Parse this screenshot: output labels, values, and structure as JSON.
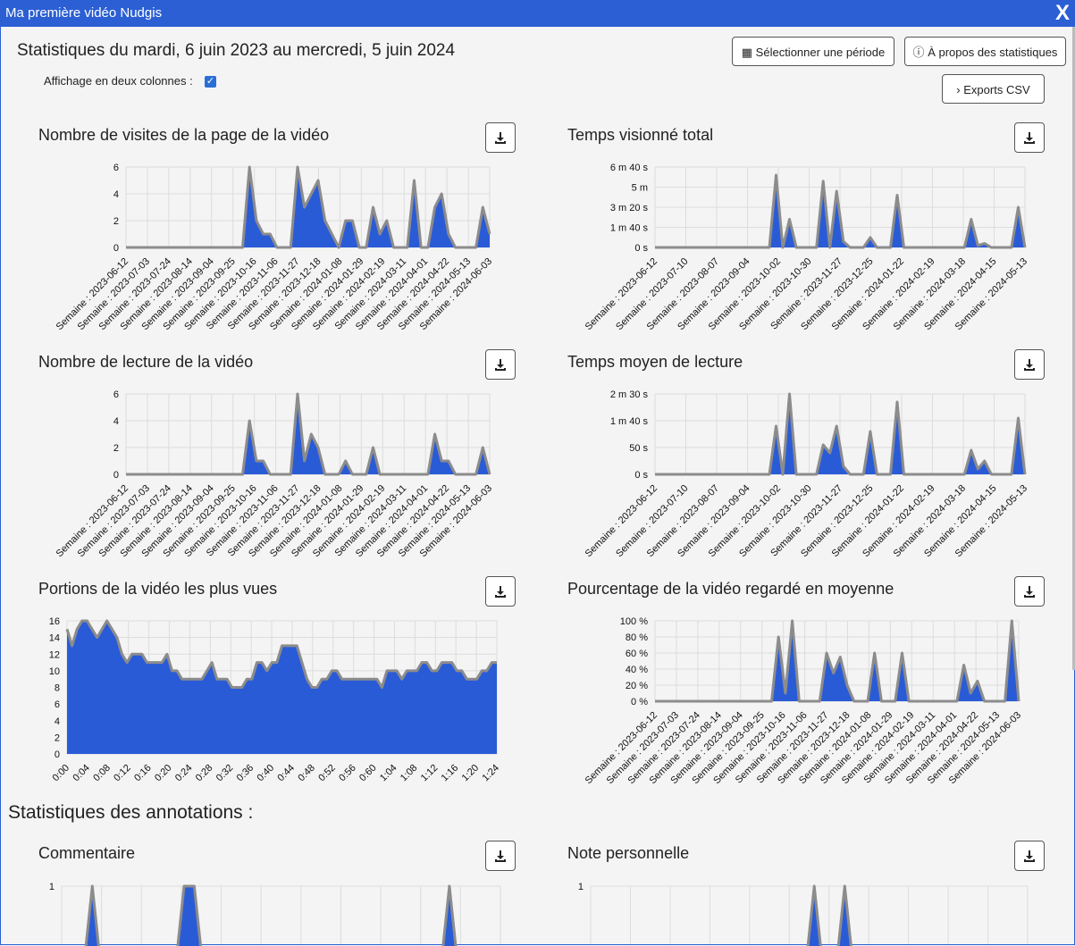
{
  "window": {
    "title": "Ma première vidéo Nudgis",
    "close_label": "X"
  },
  "header": {
    "title": "Statistiques du mardi, 6 juin 2023 au mercredi, 5 juin 2024",
    "two_columns_label": "Affichage en deux colonnes :",
    "two_columns_checked": true,
    "select_period_label": "Sélectionner une période",
    "about_label": "À propos des statistiques",
    "csv_label": "Exports CSV"
  },
  "annotations_title": "Statistiques des annotations :",
  "accent_color": "#2a5bd7",
  "chart_data": [
    {
      "type": "area",
      "title": "Nombre de visites de la page de la vidéo",
      "ylim": [
        0,
        6
      ],
      "yticks": [
        "0",
        "2",
        "4",
        "6"
      ],
      "xticks": [
        "Semaine : 2023-06-12",
        "Semaine : 2023-07-03",
        "Semaine : 2023-07-24",
        "Semaine : 2023-08-14",
        "Semaine : 2023-09-04",
        "Semaine : 2023-09-25",
        "Semaine : 2023-10-16",
        "Semaine : 2023-11-06",
        "Semaine : 2023-11-27",
        "Semaine : 2023-12-18",
        "Semaine : 2024-01-08",
        "Semaine : 2024-01-29",
        "Semaine : 2024-02-19",
        "Semaine : 2024-03-11",
        "Semaine : 2024-04-01",
        "Semaine : 2024-04-22",
        "Semaine : 2024-05-13",
        "Semaine : 2024-06-03"
      ],
      "values": [
        0,
        0,
        0,
        0,
        0,
        0,
        0,
        0,
        0,
        0,
        0,
        0,
        0,
        0,
        0,
        0,
        0,
        0,
        6,
        2,
        1,
        1,
        0,
        0,
        0,
        6,
        3,
        4,
        5,
        2,
        1,
        0,
        2,
        2,
        0,
        0,
        3,
        1,
        2,
        0,
        0,
        0,
        5,
        0,
        0,
        3,
        4,
        1,
        0,
        0,
        0,
        0,
        3,
        1
      ]
    },
    {
      "type": "area",
      "title": "Temps visionné total",
      "ylim": [
        0,
        400
      ],
      "yticks": [
        "0 s",
        "1 m 40 s",
        "3 m 20 s",
        "5 m",
        "6 m 40 s"
      ],
      "xticks": [
        "Semaine : 2023-06-12",
        "Semaine : 2023-07-10",
        "Semaine : 2023-08-07",
        "Semaine : 2023-09-04",
        "Semaine : 2023-10-02",
        "Semaine : 2023-10-30",
        "Semaine : 2023-11-27",
        "Semaine : 2023-12-25",
        "Semaine : 2024-01-22",
        "Semaine : 2024-02-19",
        "Semaine : 2024-03-18",
        "Semaine : 2024-04-15",
        "Semaine : 2024-05-13"
      ],
      "values": [
        0,
        0,
        0,
        0,
        0,
        0,
        0,
        0,
        0,
        0,
        0,
        0,
        0,
        0,
        0,
        0,
        0,
        0,
        360,
        0,
        140,
        0,
        0,
        0,
        0,
        330,
        0,
        280,
        30,
        0,
        0,
        0,
        50,
        0,
        0,
        0,
        260,
        0,
        0,
        0,
        0,
        0,
        0,
        0,
        0,
        0,
        0,
        140,
        10,
        20,
        0,
        0,
        0,
        0,
        200,
        0
      ]
    },
    {
      "type": "area",
      "title": "Nombre de lecture de la vidéo",
      "ylim": [
        0,
        6
      ],
      "yticks": [
        "0",
        "2",
        "4",
        "6"
      ],
      "xticks": [
        "Semaine : 2023-06-12",
        "Semaine : 2023-07-03",
        "Semaine : 2023-07-24",
        "Semaine : 2023-08-14",
        "Semaine : 2023-09-04",
        "Semaine : 2023-09-25",
        "Semaine : 2023-10-16",
        "Semaine : 2023-11-06",
        "Semaine : 2023-11-27",
        "Semaine : 2023-12-18",
        "Semaine : 2024-01-08",
        "Semaine : 2024-01-29",
        "Semaine : 2024-02-19",
        "Semaine : 2024-03-11",
        "Semaine : 2024-04-01",
        "Semaine : 2024-04-22",
        "Semaine : 2024-05-13",
        "Semaine : 2024-06-03"
      ],
      "values": [
        0,
        0,
        0,
        0,
        0,
        0,
        0,
        0,
        0,
        0,
        0,
        0,
        0,
        0,
        0,
        0,
        0,
        0,
        4,
        1,
        1,
        0,
        0,
        0,
        0,
        6,
        1,
        3,
        2,
        0,
        0,
        0,
        1,
        0,
        0,
        0,
        2,
        0,
        0,
        0,
        0,
        0,
        0,
        0,
        0,
        3,
        1,
        1,
        0,
        0,
        0,
        0,
        2,
        0
      ]
    },
    {
      "type": "area",
      "title": "Temps moyen de lecture",
      "ylim": [
        0,
        150
      ],
      "yticks": [
        "0 s",
        "50 s",
        "1 m 40 s",
        "2 m 30 s"
      ],
      "xticks": [
        "Semaine : 2023-06-12",
        "Semaine : 2023-07-10",
        "Semaine : 2023-08-07",
        "Semaine : 2023-09-04",
        "Semaine : 2023-10-02",
        "Semaine : 2023-10-30",
        "Semaine : 2023-11-27",
        "Semaine : 2023-12-25",
        "Semaine : 2024-01-22",
        "Semaine : 2024-02-19",
        "Semaine : 2024-03-18",
        "Semaine : 2024-04-15",
        "Semaine : 2024-05-13"
      ],
      "values": [
        0,
        0,
        0,
        0,
        0,
        0,
        0,
        0,
        0,
        0,
        0,
        0,
        0,
        0,
        0,
        0,
        0,
        0,
        90,
        0,
        150,
        0,
        0,
        0,
        0,
        55,
        40,
        90,
        15,
        0,
        0,
        0,
        80,
        0,
        0,
        0,
        135,
        0,
        0,
        0,
        0,
        0,
        0,
        0,
        0,
        0,
        0,
        45,
        10,
        25,
        0,
        0,
        0,
        0,
        105,
        0
      ]
    },
    {
      "type": "area",
      "title": "Portions de la vidéo les plus vues",
      "ylim": [
        0,
        16
      ],
      "yticks": [
        "0",
        "2",
        "4",
        "6",
        "8",
        "10",
        "12",
        "14",
        "16"
      ],
      "xticks": [
        "0:00",
        "0:04",
        "0:08",
        "0:12",
        "0:16",
        "0:20",
        "0:24",
        "0:28",
        "0:32",
        "0:36",
        "0:40",
        "0:44",
        "0:48",
        "0:52",
        "0:56",
        "0:60",
        "1:04",
        "1:08",
        "1:12",
        "1:16",
        "1:20",
        "1:24"
      ],
      "values": [
        15,
        13,
        15,
        16,
        16,
        15,
        14,
        15,
        16,
        15,
        14,
        12,
        11,
        12,
        12,
        12,
        11,
        11,
        11,
        11,
        12,
        10,
        10,
        9,
        9,
        9,
        9,
        9,
        10,
        11,
        9,
        9,
        9,
        8,
        8,
        8,
        9,
        9,
        11,
        11,
        10,
        11,
        11,
        13,
        13,
        13,
        13,
        11,
        9,
        8,
        8,
        9,
        9,
        10,
        10,
        9,
        9,
        9,
        9,
        9,
        9,
        9,
        9,
        8,
        10,
        10,
        10,
        9,
        10,
        10,
        10,
        11,
        11,
        10,
        10,
        11,
        11,
        11,
        10,
        10,
        9,
        9,
        9,
        10,
        10,
        11,
        11
      ]
    },
    {
      "type": "area",
      "title": "Pourcentage de la vidéo regardé en moyenne",
      "ylim": [
        0,
        100
      ],
      "yticks": [
        "0 %",
        "20 %",
        "40 %",
        "60 %",
        "80 %",
        "100 %"
      ],
      "xticks": [
        "Semaine : 2023-06-12",
        "Semaine : 2023-07-03",
        "Semaine : 2023-07-24",
        "Semaine : 2023-08-14",
        "Semaine : 2023-09-04",
        "Semaine : 2023-09-25",
        "Semaine : 2023-10-16",
        "Semaine : 2023-11-06",
        "Semaine : 2023-11-27",
        "Semaine : 2023-12-18",
        "Semaine : 2024-01-08",
        "Semaine : 2024-01-29",
        "Semaine : 2024-02-19",
        "Semaine : 2024-03-11",
        "Semaine : 2024-04-01",
        "Semaine : 2024-04-22",
        "Semaine : 2024-05-13",
        "Semaine : 2024-06-03"
      ],
      "values": [
        0,
        0,
        0,
        0,
        0,
        0,
        0,
        0,
        0,
        0,
        0,
        0,
        0,
        0,
        0,
        0,
        0,
        0,
        80,
        10,
        100,
        0,
        0,
        0,
        0,
        60,
        35,
        55,
        20,
        0,
        0,
        0,
        60,
        0,
        0,
        0,
        60,
        0,
        0,
        0,
        0,
        0,
        0,
        0,
        0,
        45,
        10,
        25,
        0,
        0,
        0,
        0,
        100,
        0
      ]
    },
    {
      "type": "area",
      "title": "Commentaire",
      "ylim": [
        0,
        1
      ],
      "yticks": [
        "1"
      ],
      "xticks": [],
      "values": [
        0,
        0,
        0,
        1,
        0,
        0,
        0,
        0,
        0,
        0,
        0,
        0,
        1,
        1,
        0,
        0,
        0,
        0,
        0,
        0,
        0,
        0,
        0,
        0,
        0,
        0,
        0,
        0,
        0,
        0,
        0,
        0,
        0,
        0,
        0,
        0,
        0,
        0,
        1,
        0,
        0,
        0,
        0,
        0
      ]
    },
    {
      "type": "area",
      "title": "Note personnelle",
      "ylim": [
        0,
        1
      ],
      "yticks": [
        "1"
      ],
      "xticks": [],
      "values": [
        0,
        0,
        0,
        0,
        0,
        0,
        0,
        0,
        0,
        0,
        0,
        0,
        0,
        0,
        0,
        0,
        0,
        0,
        0,
        0,
        0,
        0,
        1,
        0,
        0,
        1,
        0,
        0,
        0,
        0,
        0,
        0,
        0,
        0,
        0,
        0,
        0,
        0,
        0,
        0,
        0,
        0,
        0,
        0
      ]
    }
  ]
}
